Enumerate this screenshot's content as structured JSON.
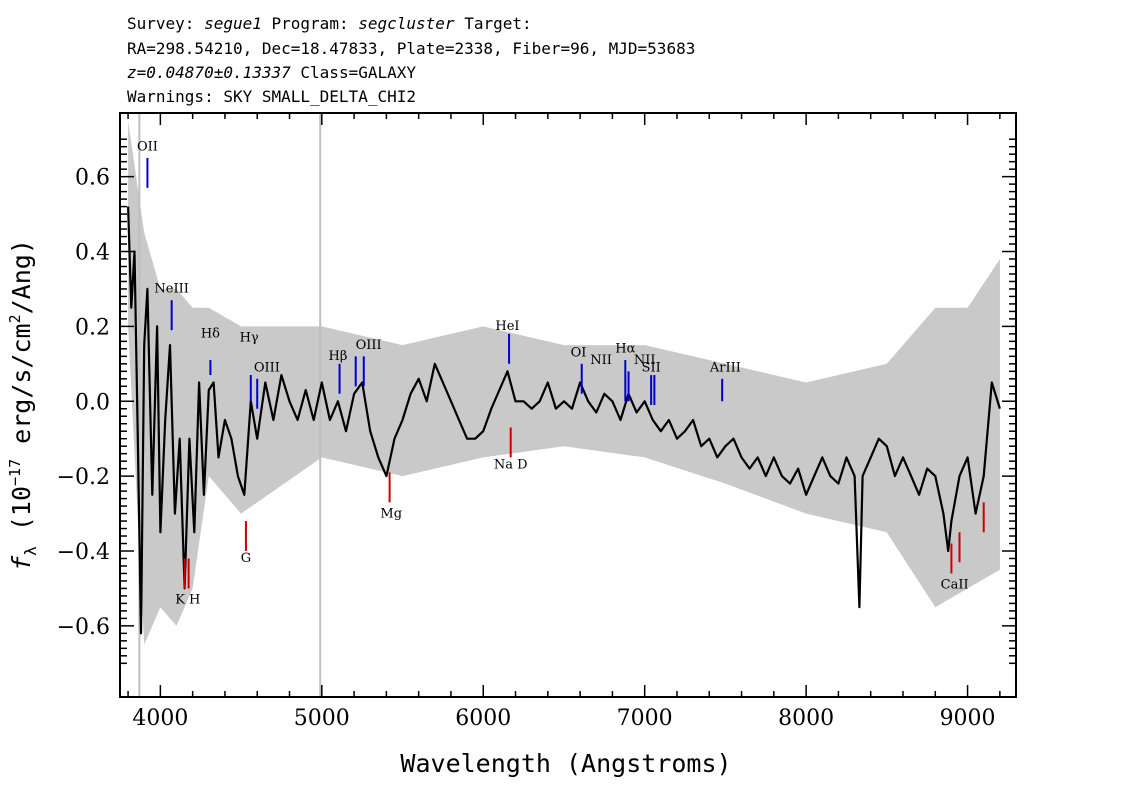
{
  "header": {
    "survey_label": "Survey:",
    "survey": "segue1",
    "program_label": "Program:",
    "program": "segcluster",
    "target_label": "Target:",
    "line2": "RA=298.54210, Dec=18.47833, Plate=2338, Fiber=96, MJD=53683",
    "redshift": "z=0.04870±0.13337",
    "class": "Class=GALAXY",
    "warnings": "Warnings: SKY SMALL_DELTA_CHI2"
  },
  "colors": {
    "flux": "#000000",
    "error": "#bfbfbf",
    "emission": "#0000cc",
    "absorption": "#cc0000",
    "marker": "#bfbfbf"
  },
  "chart_data": {
    "type": "line",
    "xlabel": "Wavelength (Angstroms)",
    "ylabel": "f_λ (10^-17 erg/s/cm^2/Ang)",
    "xlim": [
      3750,
      9300
    ],
    "ylim": [
      -0.79,
      0.77
    ],
    "x_ticks": [
      4000,
      5000,
      6000,
      7000,
      8000,
      9000
    ],
    "y_ticks": [
      -0.6,
      -0.4,
      -0.2,
      0.0,
      0.2,
      0.4,
      0.6
    ],
    "x_tick_labels": [
      "4000",
      "5000",
      "6000",
      "7000",
      "8000",
      "9000"
    ],
    "y_tick_labels": [
      "−0.6",
      "−0.4",
      "−0.2",
      "0.0",
      "0.2",
      "0.4",
      "0.6"
    ],
    "grid": false,
    "legend": "none",
    "vertical_marker_x": [
      3870,
      4990
    ],
    "series": [
      {
        "role": "flux",
        "x": [
          3800,
          3820,
          3840,
          3860,
          3880,
          3900,
          3920,
          3950,
          3980,
          4000,
          4030,
          4060,
          4090,
          4120,
          4150,
          4180,
          4210,
          4240,
          4270,
          4300,
          4330,
          4360,
          4400,
          4440,
          4480,
          4520,
          4560,
          4600,
          4650,
          4700,
          4750,
          4800,
          4850,
          4900,
          4950,
          5000,
          5050,
          5100,
          5150,
          5200,
          5250,
          5300,
          5350,
          5400,
          5450,
          5500,
          5550,
          5600,
          5650,
          5700,
          5750,
          5800,
          5850,
          5900,
          5950,
          6000,
          6050,
          6100,
          6150,
          6200,
          6250,
          6300,
          6350,
          6400,
          6450,
          6500,
          6550,
          6600,
          6650,
          6700,
          6750,
          6800,
          6850,
          6900,
          6950,
          7000,
          7050,
          7100,
          7150,
          7200,
          7250,
          7300,
          7350,
          7400,
          7450,
          7500,
          7550,
          7600,
          7650,
          7700,
          7750,
          7800,
          7850,
          7900,
          7950,
          8000,
          8050,
          8100,
          8150,
          8200,
          8250,
          8300,
          8330,
          8350,
          8400,
          8450,
          8500,
          8550,
          8600,
          8650,
          8700,
          8750,
          8800,
          8850,
          8880,
          8900,
          8950,
          9000,
          9050,
          9100,
          9150,
          9200
        ],
        "y": [
          0.52,
          0.25,
          0.4,
          -0.1,
          -0.62,
          0.15,
          0.3,
          -0.25,
          0.2,
          -0.35,
          -0.05,
          0.15,
          -0.3,
          -0.1,
          -0.5,
          -0.1,
          -0.35,
          0.05,
          -0.25,
          0.03,
          0.05,
          -0.15,
          -0.05,
          -0.1,
          -0.2,
          -0.25,
          0.0,
          -0.1,
          0.05,
          -0.05,
          0.07,
          0.0,
          -0.05,
          0.03,
          -0.05,
          0.05,
          -0.05,
          0.0,
          -0.08,
          0.02,
          0.05,
          -0.08,
          -0.15,
          -0.2,
          -0.1,
          -0.05,
          0.02,
          0.06,
          0.0,
          0.1,
          0.05,
          0.0,
          -0.05,
          -0.1,
          -0.1,
          -0.08,
          -0.02,
          0.03,
          0.08,
          0.0,
          0.0,
          -0.02,
          0.0,
          0.05,
          -0.02,
          0.0,
          -0.02,
          0.05,
          0.0,
          -0.03,
          0.02,
          0.0,
          -0.05,
          0.02,
          -0.03,
          0.0,
          -0.05,
          -0.08,
          -0.05,
          -0.1,
          -0.08,
          -0.05,
          -0.12,
          -0.1,
          -0.15,
          -0.12,
          -0.1,
          -0.15,
          -0.18,
          -0.15,
          -0.2,
          -0.15,
          -0.2,
          -0.22,
          -0.18,
          -0.25,
          -0.2,
          -0.15,
          -0.2,
          -0.22,
          -0.15,
          -0.2,
          -0.55,
          -0.2,
          -0.15,
          -0.1,
          -0.12,
          -0.2,
          -0.15,
          -0.2,
          -0.25,
          -0.18,
          -0.2,
          -0.3,
          -0.4,
          -0.32,
          -0.2,
          -0.15,
          -0.3,
          -0.2,
          0.05,
          -0.02
        ]
      },
      {
        "role": "error_band",
        "x": [
          3800,
          3900,
          4000,
          4100,
          4200,
          4300,
          4500,
          5000,
          5500,
          6000,
          6500,
          7000,
          7500,
          8000,
          8500,
          8800,
          9000,
          9200
        ],
        "y_low": [
          0.2,
          -0.65,
          -0.55,
          -0.6,
          -0.5,
          -0.2,
          -0.3,
          -0.15,
          -0.2,
          -0.15,
          -0.12,
          -0.15,
          -0.22,
          -0.3,
          -0.35,
          -0.55,
          -0.5,
          -0.45
        ],
        "y_high": [
          0.75,
          0.45,
          0.3,
          0.3,
          0.25,
          0.25,
          0.2,
          0.2,
          0.15,
          0.2,
          0.15,
          0.15,
          0.1,
          0.05,
          0.1,
          0.25,
          0.25,
          0.38
        ]
      }
    ],
    "annotations": {
      "emission": [
        {
          "label": "OII",
          "x": 3920,
          "y_top": 0.65,
          "y_bottom": 0.57
        },
        {
          "label": "NeIII",
          "x": 4070,
          "y_top": 0.27,
          "y_bottom": 0.19
        },
        {
          "label": "Hδ",
          "x": 4310,
          "y_top": 0.11,
          "y_bottom": 0.07
        },
        {
          "label": "Hγ",
          "x": 4560,
          "y_top": 0.07,
          "y_bottom": 0.0
        },
        {
          "label": "OIII",
          "x": 4600,
          "y_top": 0.06,
          "y_bottom": -0.02
        },
        {
          "label": "Hβ",
          "x": 5110,
          "y_top": 0.1,
          "y_bottom": 0.02
        },
        {
          "label": "OIII",
          "x": 5210,
          "y_top": 0.12,
          "y_bottom": 0.04
        },
        {
          "label": "OIII",
          "x": 5260,
          "y_top": 0.12,
          "y_bottom": 0.04
        },
        {
          "label": "HeI",
          "x": 6160,
          "y_top": 0.18,
          "y_bottom": 0.1
        },
        {
          "label": "OI",
          "x": 6610,
          "y_top": 0.1,
          "y_bottom": 0.02
        },
        {
          "label": "NII",
          "x": 6700,
          "y_top": null,
          "y_bottom": null
        },
        {
          "label": "Hα",
          "x": 6880,
          "y_top": 0.11,
          "y_bottom": 0.0
        },
        {
          "label": "NII",
          "x": 6900,
          "y_top": 0.08,
          "y_bottom": 0.0
        },
        {
          "label": "SII",
          "x": 7040,
          "y_top": 0.07,
          "y_bottom": -0.01
        },
        {
          "label": "SII",
          "x": 7060,
          "y_top": 0.07,
          "y_bottom": -0.01
        },
        {
          "label": "ArIII",
          "x": 7480,
          "y_top": 0.06,
          "y_bottom": 0.0
        }
      ],
      "absorption": [
        {
          "label": "K",
          "x": 4150,
          "y_top": -0.42,
          "y_bottom": -0.5
        },
        {
          "label": "H",
          "x": 4175,
          "y_top": -0.42,
          "y_bottom": -0.5
        },
        {
          "label": "G",
          "x": 4530,
          "y_top": -0.32,
          "y_bottom": -0.4
        },
        {
          "label": "Mg",
          "x": 5420,
          "y_top": -0.19,
          "y_bottom": -0.27
        },
        {
          "label": "Na D",
          "x": 6170,
          "y_top": -0.07,
          "y_bottom": -0.15
        },
        {
          "label": "CaII",
          "x": 8900,
          "y_top": -0.38,
          "y_bottom": -0.46
        },
        {
          "label": "CaII",
          "x": 8950,
          "y_top": -0.35,
          "y_bottom": -0.43
        },
        {
          "label": "CaII",
          "x": 9100,
          "y_top": -0.27,
          "y_bottom": -0.35
        }
      ]
    },
    "line_labels": [
      {
        "text": "OII",
        "x": 3920,
        "y": 0.67
      },
      {
        "text": "NeIII",
        "x": 4070,
        "y": 0.29
      },
      {
        "text": "Hδ",
        "x": 4310,
        "y": 0.17
      },
      {
        "text": "Hγ",
        "x": 4550,
        "y": 0.16
      },
      {
        "text": "OIII",
        "x": 4660,
        "y": 0.08
      },
      {
        "text": "Hβ",
        "x": 5100,
        "y": 0.11
      },
      {
        "text": "OIII",
        "x": 5290,
        "y": 0.14
      },
      {
        "text": "HeI",
        "x": 6150,
        "y": 0.19
      },
      {
        "text": "OI",
        "x": 6590,
        "y": 0.12
      },
      {
        "text": "NII",
        "x": 6730,
        "y": 0.1
      },
      {
        "text": "Hα",
        "x": 6880,
        "y": 0.13
      },
      {
        "text": "NII",
        "x": 7000,
        "y": 0.1
      },
      {
        "text": "SII",
        "x": 7040,
        "y": 0.08
      },
      {
        "text": "ArIII",
        "x": 7500,
        "y": 0.08
      },
      {
        "text": "K H",
        "x": 4170,
        "y": -0.54
      },
      {
        "text": "G",
        "x": 4530,
        "y": -0.43
      },
      {
        "text": "Mg",
        "x": 5430,
        "y": -0.31
      },
      {
        "text": "Na D",
        "x": 6170,
        "y": -0.18
      },
      {
        "text": "CaII",
        "x": 8920,
        "y": -0.5
      }
    ]
  }
}
